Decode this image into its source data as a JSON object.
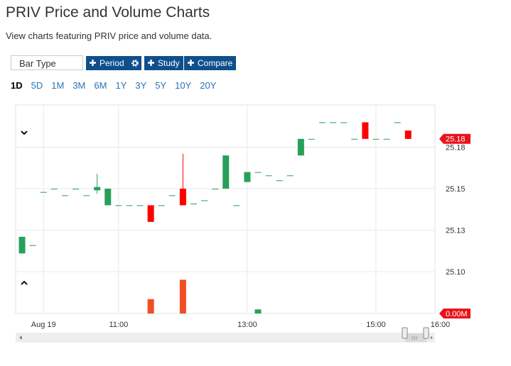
{
  "header": {
    "title": "PRIV Price and Volume Charts",
    "subtitle": "View charts featuring PRIV price and volume data."
  },
  "toolbar": {
    "chart_type": "Bar Type",
    "buttons": [
      "Period",
      "Study",
      "Compare"
    ]
  },
  "periods": [
    "1D",
    "5D",
    "1M",
    "3M",
    "6M",
    "1Y",
    "3Y",
    "5Y",
    "10Y",
    "20Y"
  ],
  "active_period": "1D",
  "chart_data": {
    "type": "candlestick",
    "x": [
      570,
      580,
      590,
      600,
      610,
      620,
      630,
      640,
      650,
      660,
      670,
      680,
      690,
      700,
      710,
      720,
      730,
      740,
      750,
      760,
      770,
      780,
      790,
      800,
      810,
      820,
      830,
      840,
      850,
      860,
      870,
      880,
      890,
      900,
      910,
      920,
      930
    ],
    "open": [
      25.111,
      25.116,
      25.148,
      25.15,
      25.146,
      25.15,
      25.146,
      25.149,
      25.14,
      25.14,
      25.14,
      25.14,
      25.14,
      25.14,
      25.146,
      25.15,
      25.141,
      25.143,
      25.15,
      25.15,
      25.14,
      25.154,
      25.16,
      25.158,
      25.155,
      25.158,
      25.17,
      25.18,
      25.19,
      25.19,
      25.19,
      25.18,
      25.19,
      25.18,
      25.18,
      25.19,
      25.185
    ],
    "high": [
      25.121,
      25.116,
      25.148,
      25.15,
      25.146,
      25.15,
      25.146,
      25.159,
      25.15,
      25.14,
      25.14,
      25.14,
      25.14,
      25.14,
      25.146,
      25.171,
      25.141,
      25.143,
      25.15,
      25.17,
      25.14,
      25.16,
      25.16,
      25.158,
      25.155,
      25.158,
      25.18,
      25.18,
      25.19,
      25.19,
      25.19,
      25.18,
      25.19,
      25.18,
      25.18,
      25.19,
      25.185
    ],
    "low": [
      25.111,
      25.116,
      25.148,
      25.15,
      25.146,
      25.15,
      25.146,
      25.147,
      25.14,
      25.14,
      25.14,
      25.14,
      25.13,
      25.14,
      25.146,
      25.14,
      25.141,
      25.143,
      25.15,
      25.15,
      25.14,
      25.154,
      25.16,
      25.158,
      25.155,
      25.158,
      25.17,
      25.18,
      25.19,
      25.19,
      25.19,
      25.18,
      25.18,
      25.18,
      25.18,
      25.19,
      25.18
    ],
    "close": [
      25.121,
      25.116,
      25.148,
      25.15,
      25.146,
      25.15,
      25.146,
      25.151,
      25.15,
      25.14,
      25.14,
      25.14,
      25.13,
      25.14,
      25.146,
      25.14,
      25.141,
      25.143,
      25.15,
      25.17,
      25.14,
      25.16,
      25.16,
      25.158,
      25.155,
      25.158,
      25.18,
      25.18,
      25.19,
      25.19,
      25.19,
      25.18,
      25.18,
      25.18,
      25.18,
      25.19,
      25.18
    ],
    "up_color": "#27a05a",
    "down_color": "#ff0000",
    "xlim": [
      564,
      955
    ],
    "xticks": [
      {
        "value": 590,
        "label": "Aug 19"
      },
      {
        "value": 660,
        "label": "11:00"
      },
      {
        "value": 780,
        "label": "13:00"
      },
      {
        "value": 900,
        "label": "15:00"
      },
      {
        "value": 960,
        "label": "16:00"
      }
    ],
    "ylim": [
      25.1,
      25.2
    ],
    "yticks": [
      {
        "value": 25.1,
        "label": "25.10"
      },
      {
        "value": 25.125,
        "label": "25.13"
      },
      25.15,
      {
        "value": 25.175,
        "label": "25.18"
      }
    ],
    "grid": true,
    "last_price": 25.18,
    "last_price_color": "#e8141a",
    "volume": {
      "values": [
        0,
        0,
        0,
        0,
        0,
        0,
        0,
        0,
        0,
        0,
        0,
        0,
        0.0035,
        0,
        0,
        0.0082,
        0,
        0,
        0,
        0,
        0,
        0,
        0.001,
        0,
        0,
        0,
        0,
        0,
        0,
        0,
        0,
        0,
        0,
        0,
        0,
        0,
        0
      ],
      "ylim": [
        0,
        0.01
      ],
      "ticks": [
        {
          "value": 0,
          "label": "0.00M"
        }
      ],
      "up_color": "#27a34f",
      "down_color": "#f04e23"
    }
  }
}
